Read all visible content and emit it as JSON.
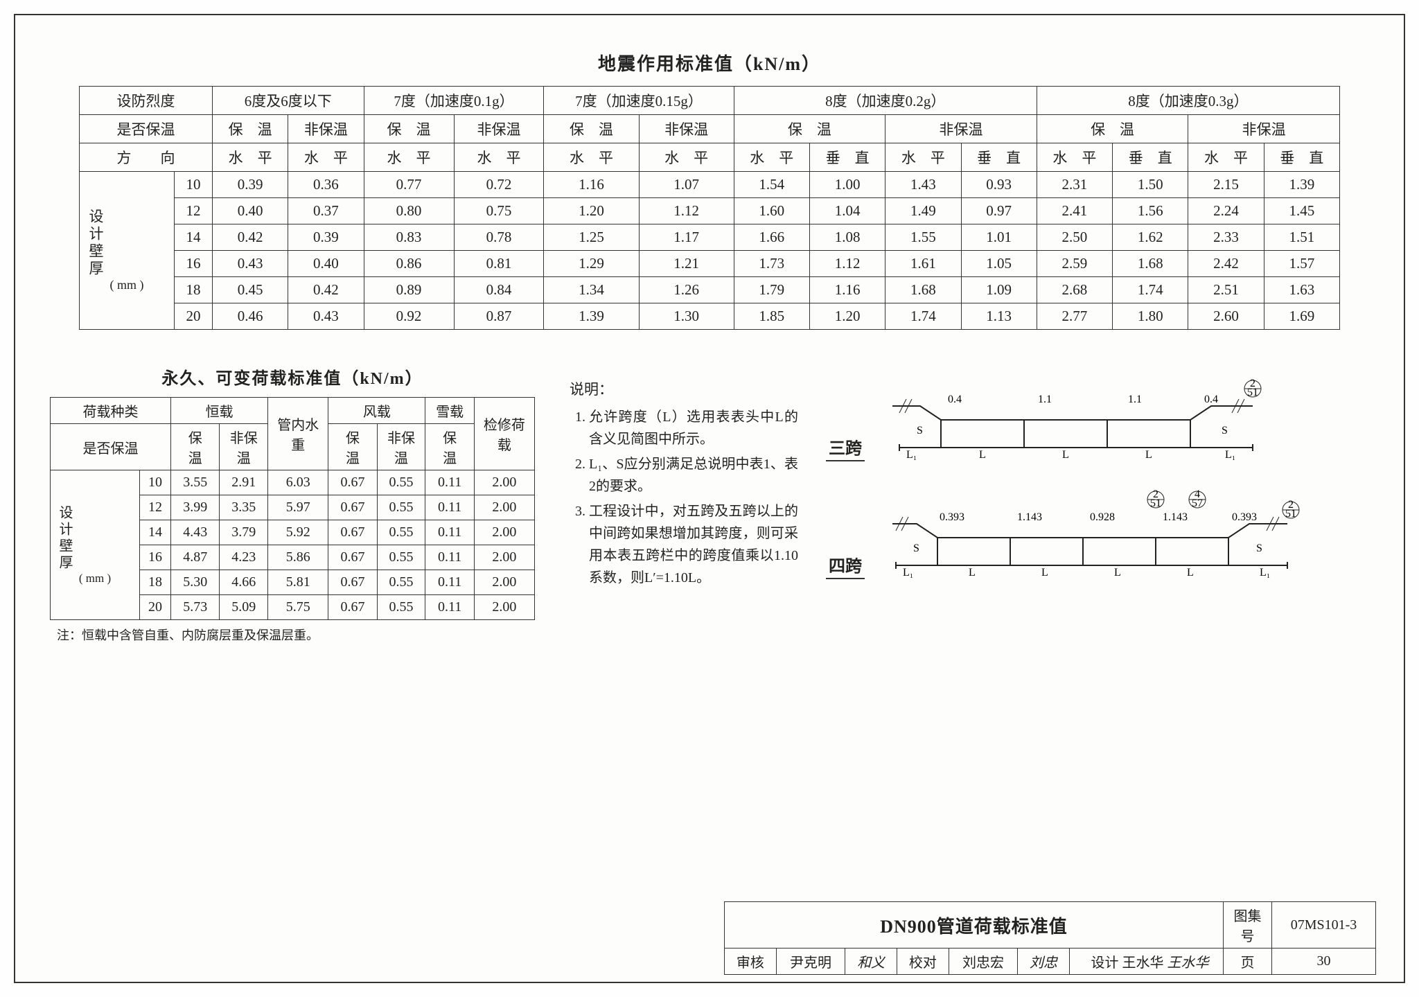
{
  "table1": {
    "title": "地震作用标准值（kN/m）",
    "row1": {
      "c0": "设防烈度",
      "c1": "6度及6度以下",
      "c2": "7度（加速度0.1g）",
      "c3": "7度（加速度0.15g）",
      "c4": "8度（加速度0.2g）",
      "c5": "8度（加速度0.3g）"
    },
    "row2": {
      "c0": "是否保温",
      "a": "保　温",
      "b": "非保温"
    },
    "row3": {
      "c0": "方　　向",
      "h": "水　平",
      "v": "垂　直"
    },
    "side": {
      "label": "设计壁厚",
      "unit": "( mm )"
    },
    "thick": [
      "10",
      "12",
      "14",
      "16",
      "18",
      "20"
    ],
    "data": [
      [
        "0.39",
        "0.36",
        "0.77",
        "0.72",
        "1.16",
        "1.07",
        "1.54",
        "1.00",
        "1.43",
        "0.93",
        "2.31",
        "1.50",
        "2.15",
        "1.39"
      ],
      [
        "0.40",
        "0.37",
        "0.80",
        "0.75",
        "1.20",
        "1.12",
        "1.60",
        "1.04",
        "1.49",
        "0.97",
        "2.41",
        "1.56",
        "2.24",
        "1.45"
      ],
      [
        "0.42",
        "0.39",
        "0.83",
        "0.78",
        "1.25",
        "1.17",
        "1.66",
        "1.08",
        "1.55",
        "1.01",
        "2.50",
        "1.62",
        "2.33",
        "1.51"
      ],
      [
        "0.43",
        "0.40",
        "0.86",
        "0.81",
        "1.29",
        "1.21",
        "1.73",
        "1.12",
        "1.61",
        "1.05",
        "2.59",
        "1.68",
        "2.42",
        "1.57"
      ],
      [
        "0.45",
        "0.42",
        "0.89",
        "0.84",
        "1.34",
        "1.26",
        "1.79",
        "1.16",
        "1.68",
        "1.09",
        "2.68",
        "1.74",
        "2.51",
        "1.63"
      ],
      [
        "0.46",
        "0.43",
        "0.92",
        "0.87",
        "1.39",
        "1.30",
        "1.85",
        "1.20",
        "1.74",
        "1.13",
        "2.77",
        "1.80",
        "2.60",
        "1.69"
      ]
    ]
  },
  "table2": {
    "title": "永久、可变荷载标准值（kN/m）",
    "row1": {
      "c0": "荷载种类",
      "c1": "恒载",
      "c2": "管内水重",
      "c3": "风载",
      "c4": "雪载",
      "c5": "检修荷载"
    },
    "row2": {
      "c0": "是否保温",
      "a": "保　温",
      "b": "非保温"
    },
    "side": {
      "label": "设计壁厚",
      "unit": "( mm )"
    },
    "thick": [
      "10",
      "12",
      "14",
      "16",
      "18",
      "20"
    ],
    "data": [
      [
        "3.55",
        "2.91",
        "6.03",
        "0.67",
        "0.55",
        "0.11",
        "2.00"
      ],
      [
        "3.99",
        "3.35",
        "5.97",
        "0.67",
        "0.55",
        "0.11",
        "2.00"
      ],
      [
        "4.43",
        "3.79",
        "5.92",
        "0.67",
        "0.55",
        "0.11",
        "2.00"
      ],
      [
        "4.87",
        "4.23",
        "5.86",
        "0.67",
        "0.55",
        "0.11",
        "2.00"
      ],
      [
        "5.30",
        "4.66",
        "5.81",
        "0.67",
        "0.55",
        "0.11",
        "2.00"
      ],
      [
        "5.73",
        "5.09",
        "5.75",
        "0.67",
        "0.55",
        "0.11",
        "2.00"
      ]
    ],
    "footnote": "注：恒载中含管自重、内防腐层重及保温层重。"
  },
  "notes": {
    "hd": "说明：",
    "n1": "允许跨度（L）选用表表头中L的含义见简图中所示。",
    "n2": "L₁、S应分别满足总说明中表1、表2的要求。",
    "n3": "工程设计中，对五跨及五跨以上的中间跨如果想增加其跨度，则可采用本表五跨栏中的跨度值乘以1.10系数，则L′=1.10L。"
  },
  "diag": {
    "d3_label": "三跨",
    "d4_label": "四跨",
    "d3_vals": {
      "a": "0.4",
      "b": "1.1",
      "c": "1.1",
      "d": "0.4",
      "ref": "2",
      "pg": "51",
      "L": "L",
      "S": "S",
      "L1": "L₁"
    },
    "d4_vals": {
      "a": "0.393",
      "b": "1.143",
      "c": "0.928",
      "d": "1.143",
      "e": "0.393",
      "ref1": "2",
      "pg1": "51",
      "ref2": "4",
      "pg2": "57",
      "ref3": "2",
      "pg3": "51",
      "L": "L",
      "S": "S",
      "L1": "L₁"
    }
  },
  "tb": {
    "title": "DN900管道荷载标准值",
    "set_lbl": "图集号",
    "set_val": "07MS101-3",
    "pg_lbl": "页",
    "pg_val": "30",
    "shenhe": "审核",
    "shenhe_n": "尹克明",
    "jiaodui": "校对",
    "jiaodui_n": "刘忠宏",
    "sheji": "设计",
    "sheji_n": "王水华"
  }
}
